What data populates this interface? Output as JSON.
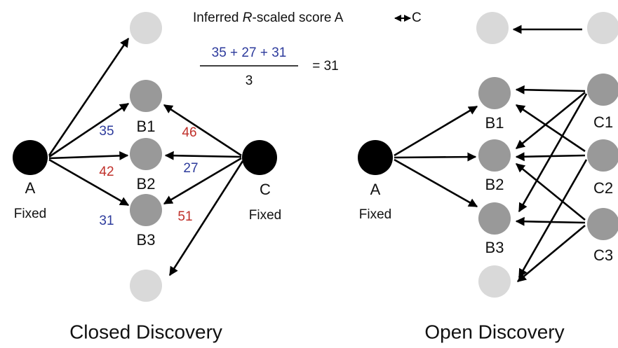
{
  "closed": {
    "title": "Closed Discovery",
    "score_title": {
      "prefix": "Inferred ",
      "italic": "R",
      "suffix": "-scaled score A",
      "end": "C"
    },
    "formula": {
      "numerator": "35 + 27 + 31",
      "denominator": "3",
      "result": "= 31"
    },
    "nodes": {
      "a": {
        "label": "A",
        "sub": "Fixed"
      },
      "b1": {
        "label": "B1"
      },
      "b2": {
        "label": "B2"
      },
      "b3": {
        "label": "B3"
      },
      "c": {
        "label": "C",
        "sub": "Fixed"
      }
    },
    "edge_scores": {
      "a_b1": 35,
      "a_b2": 42,
      "a_b3": 31,
      "c_b1": 46,
      "c_b2": 27,
      "c_b3": 51
    }
  },
  "open": {
    "title": "Open Discovery",
    "nodes": {
      "a": {
        "label": "A",
        "sub": "Fixed"
      },
      "b1": {
        "label": "B1"
      },
      "b2": {
        "label": "B2"
      },
      "b3": {
        "label": "B3"
      },
      "c1": {
        "label": "C1"
      },
      "c2": {
        "label": "C2"
      },
      "c3": {
        "label": "C3"
      }
    }
  }
}
